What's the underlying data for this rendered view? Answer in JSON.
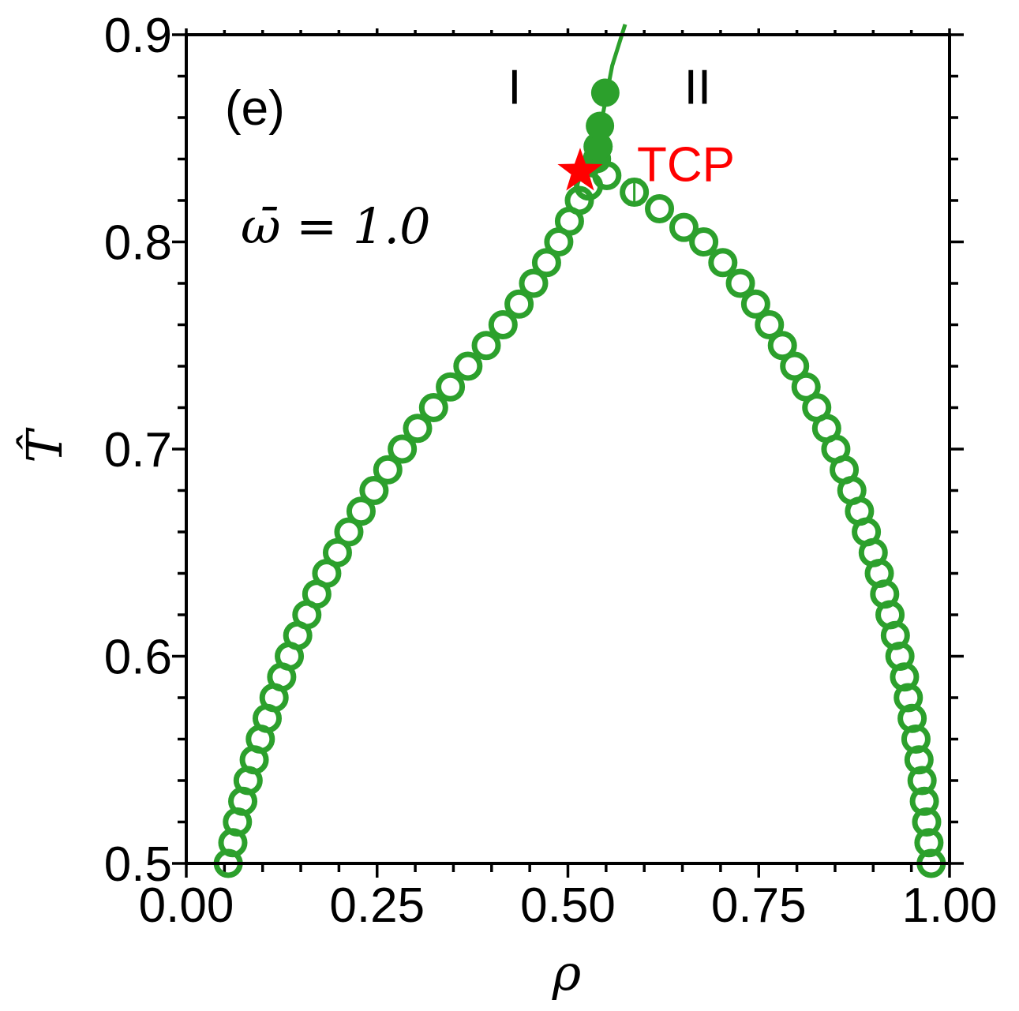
{
  "chart_data": {
    "type": "scatter",
    "panel_label": "(e)",
    "parameter_label": "ω̄ = 1.0",
    "xlabel": "ρ",
    "ylabel": "T̂",
    "xlim": [
      0.0,
      1.0
    ],
    "ylim": [
      0.5,
      0.9
    ],
    "x_ticks": [
      {
        "value": 0.0,
        "label": "0.00"
      },
      {
        "value": 0.25,
        "label": "0.25"
      },
      {
        "value": 0.5,
        "label": "0.50"
      },
      {
        "value": 0.75,
        "label": "0.75"
      },
      {
        "value": 1.0,
        "label": "1.00"
      }
    ],
    "y_ticks": [
      {
        "value": 0.5,
        "label": "0.5"
      },
      {
        "value": 0.6,
        "label": "0.6"
      },
      {
        "value": 0.7,
        "label": "0.7"
      },
      {
        "value": 0.8,
        "label": "0.8"
      },
      {
        "value": 0.9,
        "label": "0.9"
      }
    ],
    "color": "#2ca02c",
    "tcp_color": "#ff0000",
    "region_labels": [
      {
        "text": "I",
        "x": 0.43,
        "y": 0.875
      },
      {
        "text": "II",
        "x": 0.67,
        "y": 0.875
      }
    ],
    "series": [
      {
        "name": "coexistence-low-density",
        "marker": "open-circle",
        "points": [
          [
            0.055,
            0.5
          ],
          [
            0.061,
            0.51
          ],
          [
            0.067,
            0.52
          ],
          [
            0.074,
            0.53
          ],
          [
            0.081,
            0.54
          ],
          [
            0.089,
            0.55
          ],
          [
            0.097,
            0.56
          ],
          [
            0.106,
            0.57
          ],
          [
            0.115,
            0.58
          ],
          [
            0.125,
            0.59
          ],
          [
            0.135,
            0.6
          ],
          [
            0.146,
            0.61
          ],
          [
            0.158,
            0.62
          ],
          [
            0.171,
            0.63
          ],
          [
            0.184,
            0.64
          ],
          [
            0.198,
            0.65
          ],
          [
            0.213,
            0.66
          ],
          [
            0.229,
            0.67
          ],
          [
            0.246,
            0.68
          ],
          [
            0.264,
            0.69
          ],
          [
            0.283,
            0.7
          ],
          [
            0.303,
            0.71
          ],
          [
            0.324,
            0.72
          ],
          [
            0.346,
            0.73
          ],
          [
            0.369,
            0.74
          ],
          [
            0.393,
            0.75
          ],
          [
            0.415,
            0.76
          ],
          [
            0.436,
            0.77
          ],
          [
            0.455,
            0.78
          ],
          [
            0.472,
            0.79
          ],
          [
            0.488,
            0.8
          ],
          [
            0.502,
            0.81
          ],
          [
            0.515,
            0.82
          ],
          [
            0.527,
            0.827
          ]
        ]
      },
      {
        "name": "coexistence-high-density",
        "marker": "open-circle",
        "points": [
          [
            0.551,
            0.832
          ],
          [
            0.587,
            0.824
          ],
          [
            0.62,
            0.816
          ],
          [
            0.652,
            0.807
          ],
          [
            0.678,
            0.8
          ],
          [
            0.703,
            0.79
          ],
          [
            0.726,
            0.78
          ],
          [
            0.746,
            0.77
          ],
          [
            0.764,
            0.76
          ],
          [
            0.781,
            0.75
          ],
          [
            0.797,
            0.74
          ],
          [
            0.812,
            0.73
          ],
          [
            0.826,
            0.72
          ],
          [
            0.839,
            0.71
          ],
          [
            0.851,
            0.7
          ],
          [
            0.862,
            0.69
          ],
          [
            0.872,
            0.68
          ],
          [
            0.882,
            0.67
          ],
          [
            0.891,
            0.66
          ],
          [
            0.9,
            0.65
          ],
          [
            0.908,
            0.64
          ],
          [
            0.915,
            0.63
          ],
          [
            0.922,
            0.62
          ],
          [
            0.929,
            0.61
          ],
          [
            0.935,
            0.6
          ],
          [
            0.941,
            0.59
          ],
          [
            0.946,
            0.58
          ],
          [
            0.951,
            0.57
          ],
          [
            0.956,
            0.56
          ],
          [
            0.96,
            0.55
          ],
          [
            0.964,
            0.54
          ],
          [
            0.967,
            0.53
          ],
          [
            0.97,
            0.52
          ],
          [
            0.973,
            0.51
          ],
          [
            0.976,
            0.5
          ]
        ]
      },
      {
        "name": "lambda-line",
        "marker": "filled-circle",
        "points": [
          [
            0.54,
            0.846
          ],
          [
            0.54,
            0.846
          ],
          [
            0.538,
            0.84
          ],
          [
            0.539,
            0.846
          ],
          [
            0.542,
            0.856
          ],
          [
            0.549,
            0.872
          ]
        ],
        "line": [
          [
            0.535,
            0.835
          ],
          [
            0.545,
            0.86
          ],
          [
            0.558,
            0.885
          ],
          [
            0.575,
            0.905
          ]
        ]
      }
    ],
    "error_bars": [
      {
        "x": 0.587,
        "y": 0.824,
        "yerr": 0.006
      }
    ],
    "tcp": {
      "label": "TCP",
      "x": 0.516,
      "y": 0.834
    }
  }
}
